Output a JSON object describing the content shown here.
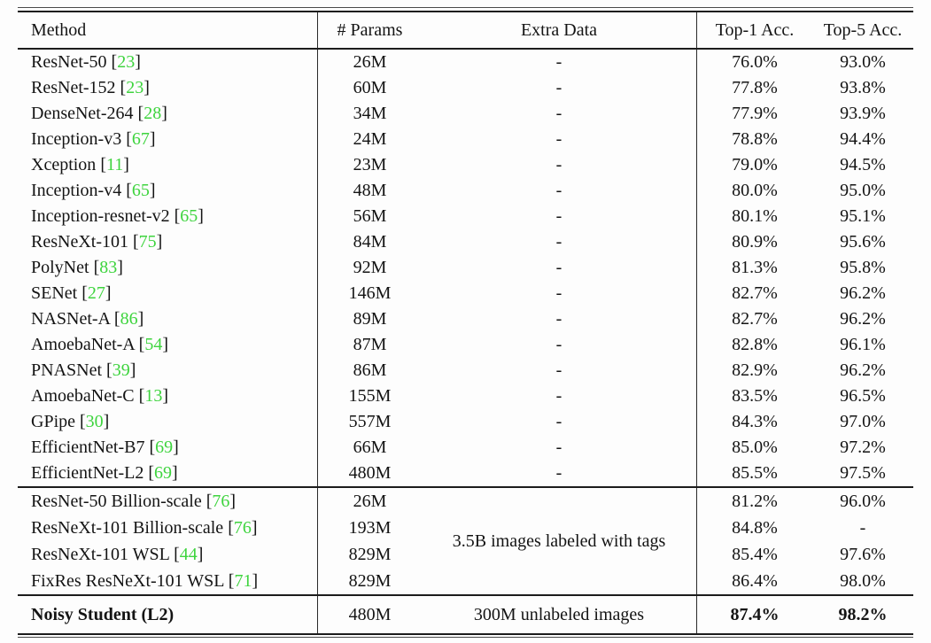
{
  "colors": {
    "citation_green": "#3ed43e",
    "rule_dark": "#1c1c1c",
    "text": "#141414"
  },
  "table": {
    "columns": [
      {
        "key": "method",
        "label": "Method"
      },
      {
        "key": "params",
        "label": "# Params"
      },
      {
        "key": "extra",
        "label": "Extra Data"
      },
      {
        "key": "top1",
        "label": "Top-1 Acc."
      },
      {
        "key": "top5",
        "label": "Top-5 Acc."
      }
    ],
    "sections": [
      {
        "name": "supervised-imagenet-models",
        "rows": [
          {
            "method": "ResNet-50",
            "cite": "23",
            "params": "26M",
            "extra": "-",
            "top1": "76.0%",
            "top5": "93.0%"
          },
          {
            "method": "ResNet-152",
            "cite": "23",
            "params": "60M",
            "extra": "-",
            "top1": "77.8%",
            "top5": "93.8%"
          },
          {
            "method": "DenseNet-264",
            "cite": "28",
            "params": "34M",
            "extra": "-",
            "top1": "77.9%",
            "top5": "93.9%"
          },
          {
            "method": "Inception-v3",
            "cite": "67",
            "params": "24M",
            "extra": "-",
            "top1": "78.8%",
            "top5": "94.4%"
          },
          {
            "method": "Xception",
            "cite": "11",
            "params": "23M",
            "extra": "-",
            "top1": "79.0%",
            "top5": "94.5%"
          },
          {
            "method": "Inception-v4",
            "cite": "65",
            "params": "48M",
            "extra": "-",
            "top1": "80.0%",
            "top5": "95.0%"
          },
          {
            "method": "Inception-resnet-v2",
            "cite": "65",
            "params": "56M",
            "extra": "-",
            "top1": "80.1%",
            "top5": "95.1%"
          },
          {
            "method": "ResNeXt-101",
            "cite": "75",
            "params": "84M",
            "extra": "-",
            "top1": "80.9%",
            "top5": "95.6%"
          },
          {
            "method": "PolyNet",
            "cite": "83",
            "params": "92M",
            "extra": "-",
            "top1": "81.3%",
            "top5": "95.8%"
          },
          {
            "method": "SENet",
            "cite": "27",
            "params": "146M",
            "extra": "-",
            "top1": "82.7%",
            "top5": "96.2%"
          },
          {
            "method": "NASNet-A",
            "cite": "86",
            "params": "89M",
            "extra": "-",
            "top1": "82.7%",
            "top5": "96.2%"
          },
          {
            "method": "AmoebaNet-A",
            "cite": "54",
            "params": "87M",
            "extra": "-",
            "top1": "82.8%",
            "top5": "96.1%"
          },
          {
            "method": "PNASNet",
            "cite": "39",
            "params": "86M",
            "extra": "-",
            "top1": "82.9%",
            "top5": "96.2%"
          },
          {
            "method": "AmoebaNet-C",
            "cite": "13",
            "params": "155M",
            "extra": "-",
            "top1": "83.5%",
            "top5": "96.5%"
          },
          {
            "method": "GPipe",
            "cite": "30",
            "params": "557M",
            "extra": "-",
            "top1": "84.3%",
            "top5": "97.0%"
          },
          {
            "method": "EfficientNet-B7",
            "cite": "69",
            "params": "66M",
            "extra": "-",
            "top1": "85.0%",
            "top5": "97.2%"
          },
          {
            "method": "EfficientNet-L2",
            "cite": "69",
            "params": "480M",
            "extra": "-",
            "top1": "85.5%",
            "top5": "97.5%"
          }
        ]
      },
      {
        "name": "weakly-supervised-models",
        "extra_shared": "3.5B images labeled with tags",
        "rows": [
          {
            "method": "ResNet-50 Billion-scale",
            "cite": "76",
            "params": "26M",
            "top1": "81.2%",
            "top5": "96.0%"
          },
          {
            "method": "ResNeXt-101 Billion-scale",
            "cite": "76",
            "params": "193M",
            "top1": "84.8%",
            "top5": "-"
          },
          {
            "method": "ResNeXt-101 WSL",
            "cite": "44",
            "params": "829M",
            "top1": "85.4%",
            "top5": "97.6%"
          },
          {
            "method": "FixRes ResNeXt-101 WSL",
            "cite": "71",
            "params": "829M",
            "top1": "86.4%",
            "top5": "98.0%"
          }
        ]
      },
      {
        "name": "noisy-student",
        "rows": [
          {
            "method": "Noisy Student (L2)",
            "bold": true,
            "params": "480M",
            "extra": "300M unlabeled images",
            "top1": "87.4%",
            "top5": "98.2%"
          }
        ]
      }
    ]
  }
}
